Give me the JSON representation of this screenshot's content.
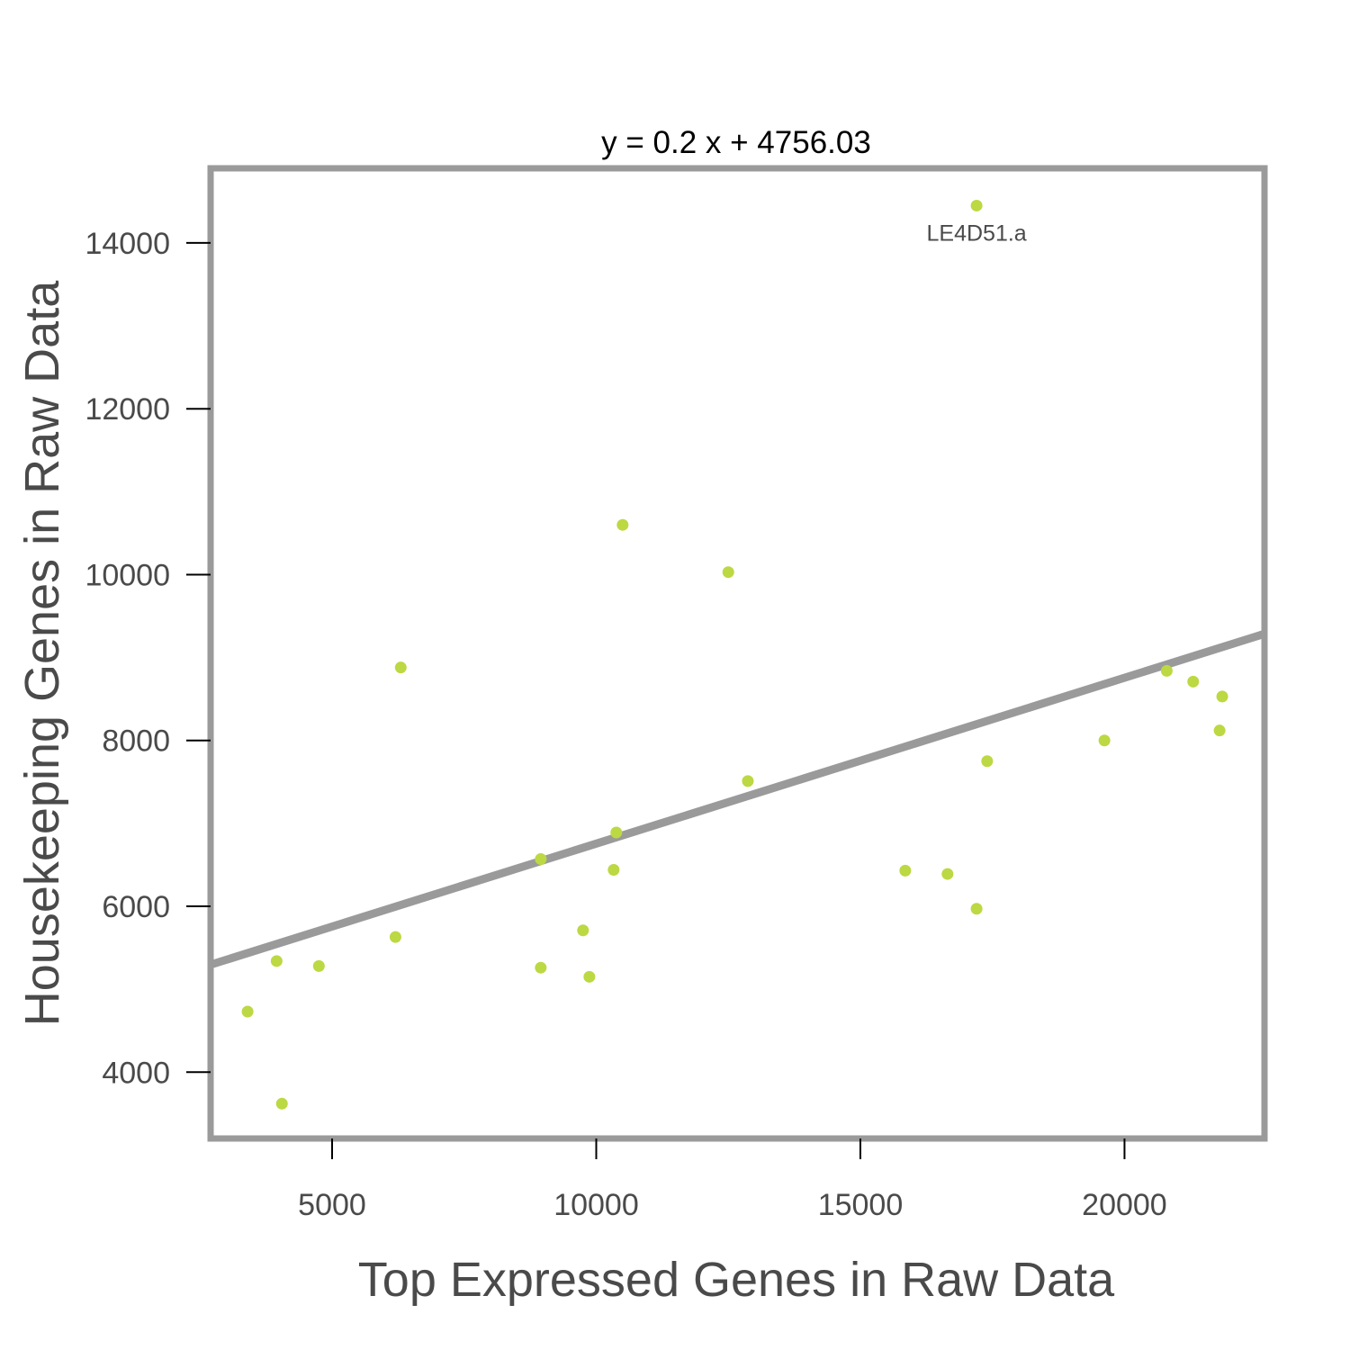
{
  "chart_data": {
    "type": "scatter",
    "title": "y = 0.2 x + 4756.03",
    "xlabel": "Top Expressed Genes in Raw Data",
    "ylabel": "Housekeeping Genes in Raw Data",
    "xlim": [
      2700,
      22650
    ],
    "ylim": [
      3200,
      14900
    ],
    "xticks": [
      5000,
      10000,
      15000,
      20000
    ],
    "yticks": [
      4000,
      6000,
      8000,
      10000,
      12000,
      14000
    ],
    "grid": false,
    "point_color": "#bcd843",
    "line_color": "#9a9a9a",
    "frame_color": "#9a9a9a",
    "fit": {
      "slope": 0.2,
      "intercept": 4756.03
    },
    "points": [
      {
        "x": 3400,
        "y": 4730
      },
      {
        "x": 3950,
        "y": 5340
      },
      {
        "x": 4050,
        "y": 3620
      },
      {
        "x": 4750,
        "y": 5280
      },
      {
        "x": 6200,
        "y": 5630
      },
      {
        "x": 6300,
        "y": 8880
      },
      {
        "x": 8950,
        "y": 6570
      },
      {
        "x": 8950,
        "y": 5260
      },
      {
        "x": 9750,
        "y": 5710
      },
      {
        "x": 9870,
        "y": 5150
      },
      {
        "x": 10330,
        "y": 6440
      },
      {
        "x": 10380,
        "y": 6890
      },
      {
        "x": 10500,
        "y": 10600
      },
      {
        "x": 12500,
        "y": 10030
      },
      {
        "x": 12870,
        "y": 7510
      },
      {
        "x": 15850,
        "y": 6430
      },
      {
        "x": 16650,
        "y": 6390
      },
      {
        "x": 17200,
        "y": 5970
      },
      {
        "x": 17200,
        "y": 14450,
        "label": "LE4D51.a"
      },
      {
        "x": 17400,
        "y": 7750
      },
      {
        "x": 19620,
        "y": 8000
      },
      {
        "x": 20800,
        "y": 8840
      },
      {
        "x": 21300,
        "y": 8710
      },
      {
        "x": 21800,
        "y": 8120
      },
      {
        "x": 21850,
        "y": 8530
      }
    ]
  }
}
